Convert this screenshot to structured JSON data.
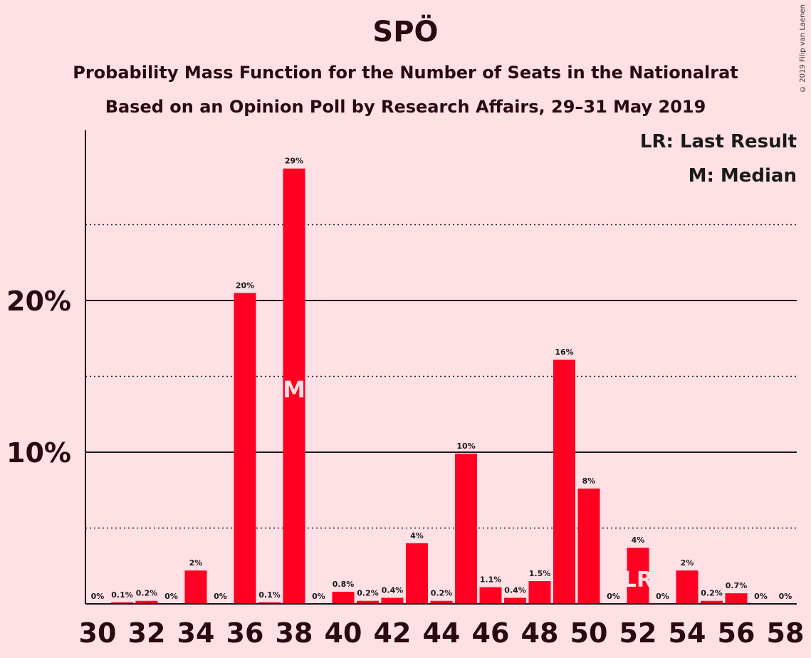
{
  "title": "SPÖ",
  "subtitle1": "Probability Mass Function for the Number of Seats in the Nationalrat",
  "subtitle2": "Based on an Opinion Poll by Research Affairs, 29–31 May 2019",
  "copyright": "© 2019 Filip van Laenen",
  "legend": {
    "last_result": "LR: Last Result",
    "median": "M: Median"
  },
  "colors": {
    "background": "#ffe0e4",
    "bar": "#ff0022",
    "marker_text": "#ffe0e4"
  },
  "chart_data": {
    "type": "bar",
    "categories": [
      30,
      31,
      32,
      33,
      34,
      35,
      36,
      37,
      38,
      39,
      40,
      41,
      42,
      43,
      44,
      45,
      46,
      47,
      48,
      49,
      50,
      51,
      52,
      53,
      54,
      55,
      56,
      57,
      58
    ],
    "values": [
      0,
      0.1,
      0.2,
      0,
      2.2,
      0,
      20.5,
      0.1,
      28.7,
      0,
      0.8,
      0.2,
      0.4,
      4,
      0.2,
      9.9,
      1.1,
      0.4,
      1.5,
      16.1,
      7.6,
      0,
      3.7,
      0,
      2.2,
      0.2,
      0.7,
      0,
      0
    ],
    "data_labels": [
      "0%",
      "0.1%",
      "0.2%",
      "0%",
      "2%",
      "0%",
      "20%",
      "0.1%",
      "29%",
      "0%",
      "0.8%",
      "0.2%",
      "0.4%",
      "4%",
      "0.2%",
      "10%",
      "1.1%",
      "0.4%",
      "1.5%",
      "16%",
      "8%",
      "0%",
      "4%",
      "0%",
      "2%",
      "0.2%",
      "0.7%",
      "0%",
      "0%"
    ],
    "x_tick_labels": [
      "30",
      "32",
      "34",
      "36",
      "38",
      "40",
      "42",
      "44",
      "46",
      "48",
      "50",
      "52",
      "54",
      "56",
      "58"
    ],
    "y_tick_labels": [
      "10%",
      "20%"
    ],
    "y_ticks": [
      10,
      20
    ],
    "y_minor_ticks": [
      5,
      15,
      25
    ],
    "ylim": [
      0,
      31.2
    ],
    "median_seat": 38,
    "median_label": "M",
    "last_result_seat": 52,
    "last_result_label": "LR",
    "xlabel": "",
    "ylabel": ""
  }
}
